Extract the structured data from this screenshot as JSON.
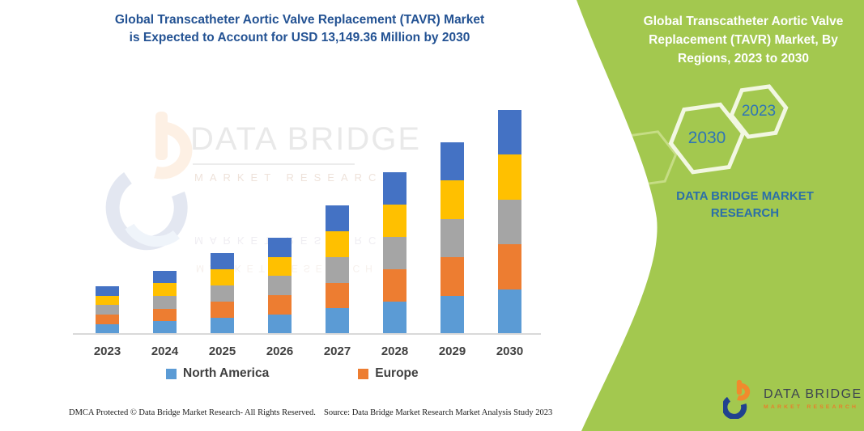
{
  "left": {
    "title_lines": [
      "Global Transcatheter Aortic Valve Replacement (TAVR) Market",
      "is Expected to Account for USD 13,149.36 Million by 2030"
    ]
  },
  "chart_data": {
    "type": "bar",
    "stacked": true,
    "title": "Global Transcatheter Aortic Valve Replacement (TAVR) Market is Expected to Account for USD 13,149.36 Million by 2030",
    "annotation": "Only labeled value: 2030 total = USD 13,149.36 Million; other values estimated from bar heights",
    "unit": "USD Million (estimated)",
    "categories": [
      "2023",
      "2024",
      "2025",
      "2026",
      "2027",
      "2028",
      "2029",
      "2030"
    ],
    "totals_estimated": [
      2820,
      3720,
      4760,
      5670,
      7530,
      9480,
      11250,
      13149.36
    ],
    "stack_order_bottom_to_top": [
      "North America",
      "Europe",
      "unlabeled-gray",
      "unlabeled-yellow",
      "unlabeled-darkblue"
    ],
    "series": [
      {
        "name": "North America",
        "in_legend": true,
        "color": "#5B9BD5",
        "values": [
          564,
          744,
          952,
          1134,
          1506,
          1896,
          2250,
          2629.87
        ]
      },
      {
        "name": "Europe",
        "in_legend": true,
        "color": "#ED7D31",
        "values": [
          564,
          744,
          952,
          1134,
          1506,
          1896,
          2250,
          2629.87
        ]
      },
      {
        "name": "unlabeled-gray",
        "in_legend": false,
        "color": "#A5A5A5",
        "values": [
          564,
          744,
          952,
          1134,
          1506,
          1896,
          2250,
          2629.87
        ]
      },
      {
        "name": "unlabeled-yellow",
        "in_legend": false,
        "color": "#FFC000",
        "values": [
          564,
          744,
          952,
          1134,
          1506,
          1896,
          2250,
          2629.87
        ]
      },
      {
        "name": "unlabeled-darkblue",
        "in_legend": false,
        "color": "#4472C4",
        "values": [
          564,
          744,
          952,
          1134,
          1506,
          1896,
          2250,
          2629.87
        ]
      }
    ],
    "x_axis": {
      "labels": [
        "2023",
        "2024",
        "2025",
        "2026",
        "2027",
        "2028",
        "2029",
        "2030"
      ],
      "bold": true
    },
    "y_axis": {
      "visible": false
    },
    "gridlines": false,
    "legend_position": "bottom"
  },
  "legend": {
    "items": [
      {
        "label": "North America",
        "color": "#5B9BD5"
      },
      {
        "label": "Europe",
        "color": "#ED7D31"
      }
    ]
  },
  "watermark": {
    "line1": "DATA BRIDGE",
    "line2": "MARKET RESEARCH"
  },
  "footer": {
    "left": "DMCA Protected © Data Bridge Market Research-  All Rights Reserved.",
    "right": "Source: Data Bridge Market Research  Market Analysis Study 2023"
  },
  "right_panel": {
    "title": "Global Transcatheter Aortic Valve Replacement (TAVR) Market, By Regions, 2023 to 2030",
    "title_lines": [
      "Global Transcatheter Aortic Valve",
      "Replacement (TAVR) Market, By",
      "Regions, 2023 to 2030"
    ],
    "hexagon_large_label": "2030",
    "hexagon_small_label": "2023",
    "brand_lines": [
      "DATA BRIDGE MARKET",
      "RESEARCH"
    ],
    "logo": {
      "line1": "DATA BRIDGE",
      "line2": "MARKET RESEARCH"
    }
  },
  "colors": {
    "panel_green": "#A3C84F",
    "hexagon_stroke": "#F2F7E2",
    "faint_hexagon_stroke": "#C6DD85",
    "title_blue": "#235293",
    "brand_blue_on_green": "#2B6FA8",
    "hex_year_blue": "#2E75B6",
    "axis_label_gray": "#404040",
    "axis_line_gray": "#D9D9D9",
    "logo_orange": "#F18A2D",
    "logo_navy": "#20418F"
  }
}
